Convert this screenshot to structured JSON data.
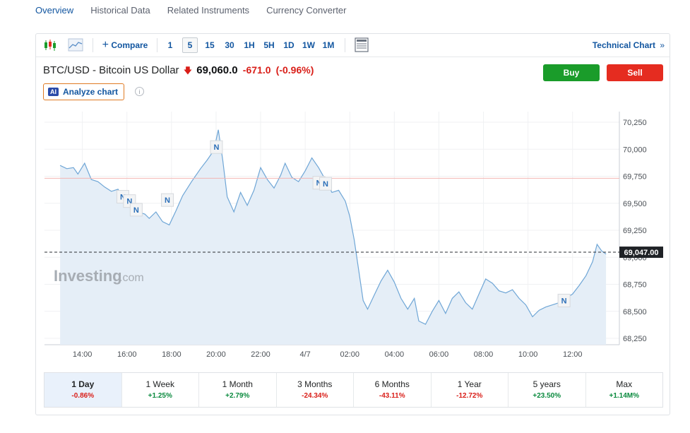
{
  "nav_tabs": [
    "Overview",
    "Historical Data",
    "Related Instruments",
    "Currency Converter"
  ],
  "toolbar": {
    "compare_label": "Compare",
    "intervals": [
      "1",
      "5",
      "15",
      "30",
      "1H",
      "5H",
      "1D",
      "1W",
      "1M"
    ],
    "active_interval": "5",
    "technical_chart_label": "Technical Chart",
    "technical_chart_arrow": "»"
  },
  "instrument": {
    "name": "BTC/USD - Bitcoin US Dollar",
    "price": "69,060.0",
    "change": "-671.0",
    "change_pct": "(-0.96%)"
  },
  "buttons": {
    "buy": "Buy",
    "sell": "Sell"
  },
  "analyze": {
    "badge": "AI",
    "label": "Analyze chart",
    "info": "i"
  },
  "watermark": {
    "brand": "Investing",
    "suffix": ".com"
  },
  "colors": {
    "line": "#6fa6d6",
    "fill": "#e5eef7",
    "refline": "#f2b5b3",
    "buy": "#1a9c2a",
    "sell": "#e52c20",
    "accent": "#1256a0"
  },
  "chart_data": {
    "type": "area",
    "x_ticks": [
      "14:00",
      "16:00",
      "18:00",
      "20:00",
      "22:00",
      "4/7",
      "02:00",
      "04:00",
      "06:00",
      "08:00",
      "10:00",
      "12:00"
    ],
    "y_ticks": [
      "70,250",
      "70,000",
      "69,750",
      "69,500",
      "69,250",
      "69,000",
      "68,750",
      "68,500",
      "68,250"
    ],
    "ylim": [
      68250,
      70250
    ],
    "previous_close": 69731,
    "last_price": 69047,
    "last_price_label": "69,047.00",
    "news_marker_label": "N",
    "news_markers": [
      {
        "hour": 15.8,
        "value": 69560
      },
      {
        "hour": 16.1,
        "value": 69520
      },
      {
        "hour": 16.4,
        "value": 69440
      },
      {
        "hour": 17.8,
        "value": 69530
      },
      {
        "hour": 20.0,
        "value": 70020
      },
      {
        "hour": 24.6,
        "value": 69690
      },
      {
        "hour": 24.9,
        "value": 69680
      },
      {
        "hour": 35.6,
        "value": 68600
      }
    ],
    "series": [
      {
        "values": [
          [
            13.0,
            69850
          ],
          [
            13.3,
            69820
          ],
          [
            13.6,
            69830
          ],
          [
            13.8,
            69770
          ],
          [
            14.1,
            69870
          ],
          [
            14.4,
            69720
          ],
          [
            14.7,
            69700
          ],
          [
            15.0,
            69650
          ],
          [
            15.3,
            69610
          ],
          [
            15.6,
            69630
          ],
          [
            15.8,
            69560
          ],
          [
            16.0,
            69590
          ],
          [
            16.2,
            69460
          ],
          [
            16.5,
            69420
          ],
          [
            16.8,
            69400
          ],
          [
            17.0,
            69360
          ],
          [
            17.3,
            69420
          ],
          [
            17.6,
            69330
          ],
          [
            17.9,
            69300
          ],
          [
            18.2,
            69430
          ],
          [
            18.5,
            69570
          ],
          [
            18.9,
            69700
          ],
          [
            19.3,
            69820
          ],
          [
            19.6,
            69900
          ],
          [
            19.9,
            69990
          ],
          [
            20.1,
            70180
          ],
          [
            20.3,
            69900
          ],
          [
            20.5,
            69560
          ],
          [
            20.8,
            69420
          ],
          [
            21.1,
            69600
          ],
          [
            21.4,
            69480
          ],
          [
            21.7,
            69620
          ],
          [
            22.0,
            69830
          ],
          [
            22.3,
            69720
          ],
          [
            22.6,
            69640
          ],
          [
            22.9,
            69760
          ],
          [
            23.1,
            69870
          ],
          [
            23.4,
            69740
          ],
          [
            23.7,
            69700
          ],
          [
            24.0,
            69800
          ],
          [
            24.3,
            69920
          ],
          [
            24.6,
            69830
          ],
          [
            24.9,
            69720
          ],
          [
            25.2,
            69600
          ],
          [
            25.5,
            69620
          ],
          [
            25.8,
            69520
          ],
          [
            26.0,
            69380
          ],
          [
            26.2,
            69160
          ],
          [
            26.4,
            68880
          ],
          [
            26.6,
            68600
          ],
          [
            26.8,
            68520
          ],
          [
            27.1,
            68650
          ],
          [
            27.4,
            68780
          ],
          [
            27.7,
            68880
          ],
          [
            28.0,
            68770
          ],
          [
            28.3,
            68620
          ],
          [
            28.6,
            68520
          ],
          [
            28.9,
            68620
          ],
          [
            29.1,
            68410
          ],
          [
            29.4,
            68380
          ],
          [
            29.7,
            68500
          ],
          [
            30.0,
            68600
          ],
          [
            30.3,
            68480
          ],
          [
            30.6,
            68620
          ],
          [
            30.9,
            68680
          ],
          [
            31.2,
            68580
          ],
          [
            31.5,
            68520
          ],
          [
            31.8,
            68660
          ],
          [
            32.1,
            68800
          ],
          [
            32.4,
            68760
          ],
          [
            32.7,
            68690
          ],
          [
            33.0,
            68670
          ],
          [
            33.3,
            68700
          ],
          [
            33.6,
            68620
          ],
          [
            33.9,
            68560
          ],
          [
            34.2,
            68450
          ],
          [
            34.5,
            68510
          ],
          [
            34.8,
            68540
          ],
          [
            35.1,
            68560
          ],
          [
            35.4,
            68580
          ],
          [
            35.7,
            68620
          ],
          [
            36.0,
            68660
          ],
          [
            36.3,
            68740
          ],
          [
            36.6,
            68830
          ],
          [
            36.9,
            68960
          ],
          [
            37.1,
            69120
          ],
          [
            37.3,
            69060
          ],
          [
            37.5,
            69030
          ]
        ]
      }
    ]
  },
  "ranges": [
    {
      "label": "1 Day",
      "value": "-0.86%",
      "dir": "neg",
      "active": true
    },
    {
      "label": "1 Week",
      "value": "+1.25%",
      "dir": "pos",
      "active": false
    },
    {
      "label": "1 Month",
      "value": "+2.79%",
      "dir": "pos",
      "active": false
    },
    {
      "label": "3 Months",
      "value": "-24.34%",
      "dir": "neg",
      "active": false
    },
    {
      "label": "6 Months",
      "value": "-43.11%",
      "dir": "neg",
      "active": false
    },
    {
      "label": "1 Year",
      "value": "-12.72%",
      "dir": "neg",
      "active": false
    },
    {
      "label": "5 years",
      "value": "+23.50%",
      "dir": "pos",
      "active": false
    },
    {
      "label": "Max",
      "value": "+1.14M%",
      "dir": "pos",
      "active": false
    }
  ]
}
